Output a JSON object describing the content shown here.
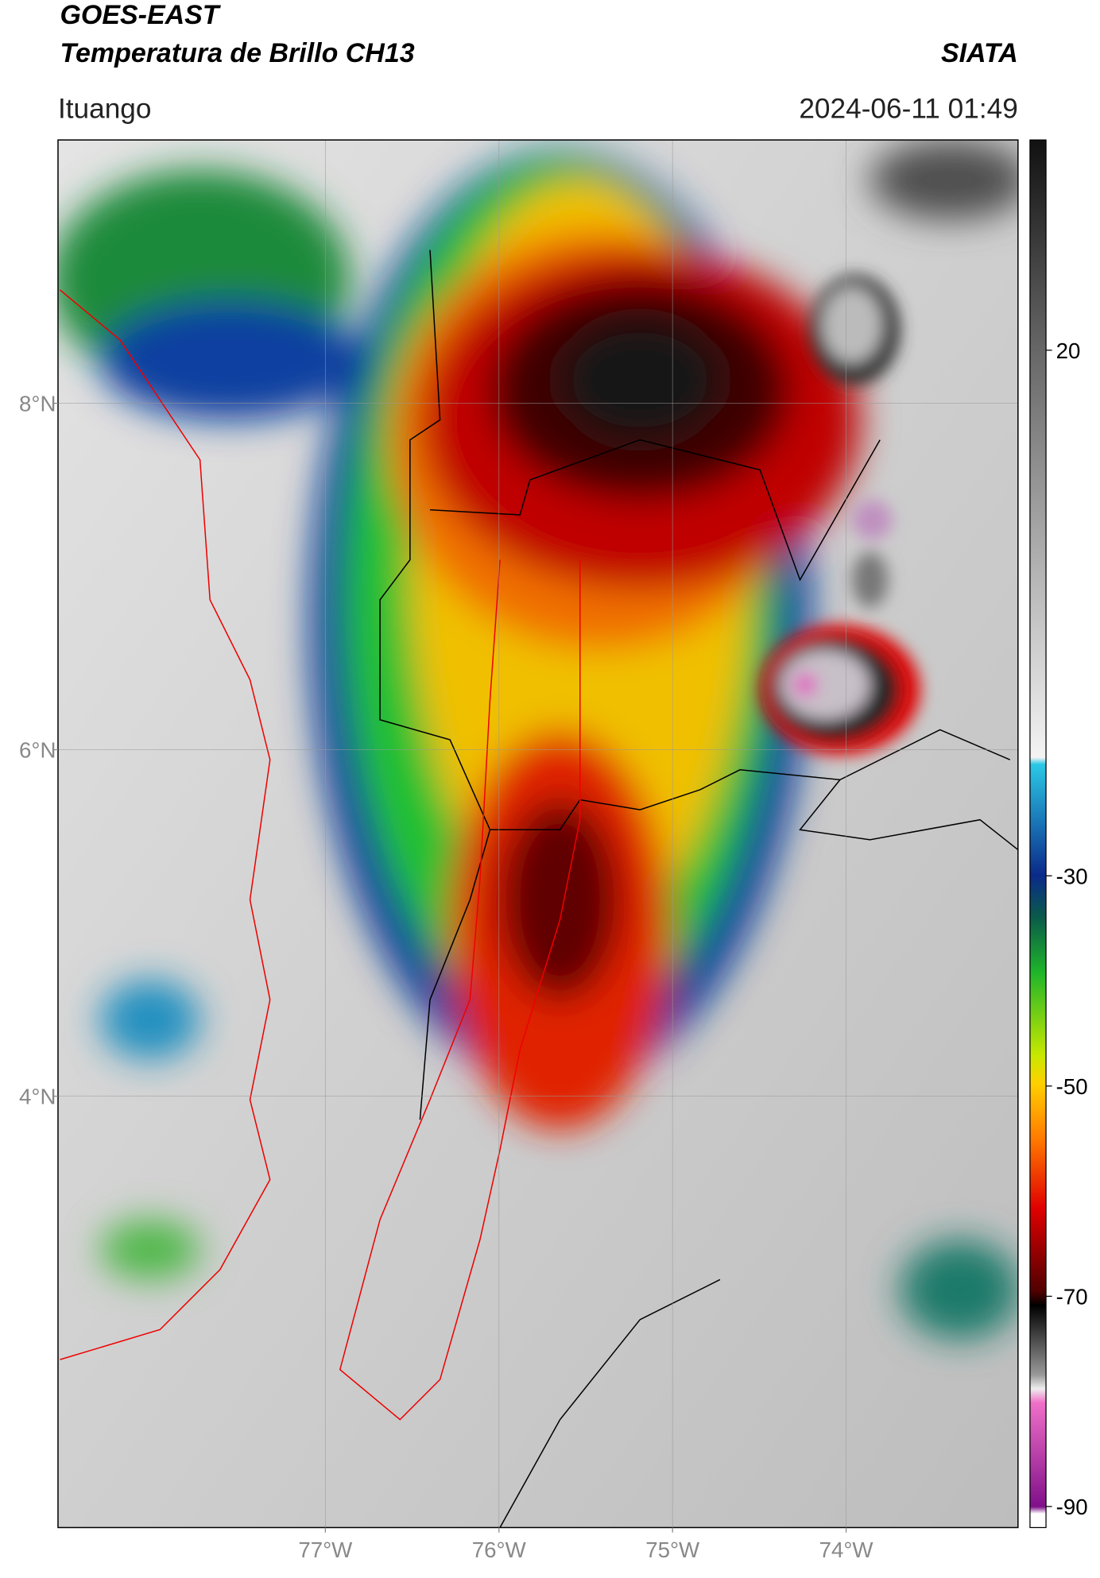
{
  "header": {
    "title": "GOES-EAST",
    "subtitle": "Temperatura de Brillo CH13",
    "brand": "SIATA",
    "location": "Ituango",
    "datetime": "2024-06-11 01:49"
  },
  "map": {
    "xlim": [
      -78.54,
      -73.01
    ],
    "ylim": [
      1.51,
      9.52
    ],
    "xticks": [
      {
        "value": -77,
        "label": "77°W"
      },
      {
        "value": -76,
        "label": "76°W"
      },
      {
        "value": -75,
        "label": "75°W"
      },
      {
        "value": -74,
        "label": "74°W"
      }
    ],
    "yticks": [
      {
        "value": 8,
        "label": "8°N"
      },
      {
        "value": 6,
        "label": "6°N"
      },
      {
        "value": 4,
        "label": "4°N"
      }
    ],
    "grid": true
  },
  "colorbar": {
    "lim": [
      -92,
      40
    ],
    "ticks": [
      20,
      -30,
      -50,
      -70,
      -90
    ]
  }
}
